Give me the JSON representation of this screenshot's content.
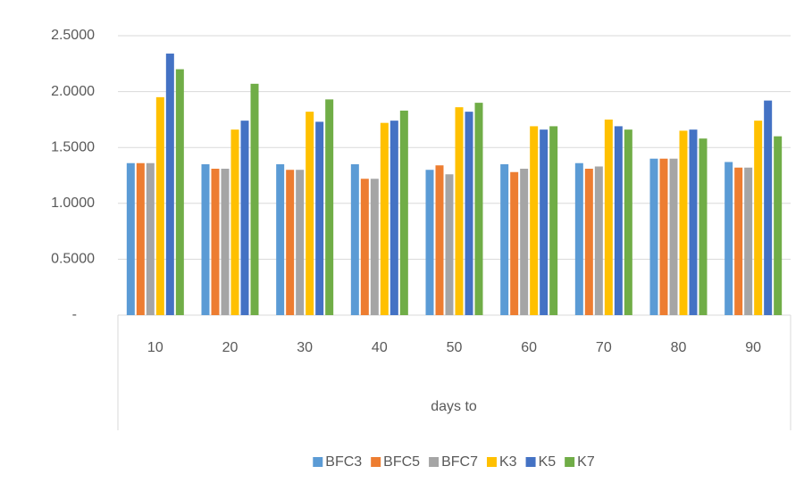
{
  "chart_data": {
    "type": "bar",
    "categories": [
      "10",
      "20",
      "30",
      "40",
      "50",
      "60",
      "70",
      "80",
      "90"
    ],
    "x_label": "days to",
    "series": [
      {
        "name": "BFC3",
        "color": "#5b9bd5",
        "values": [
          1.36,
          1.35,
          1.35,
          1.35,
          1.3,
          1.35,
          1.36,
          1.4,
          1.37
        ]
      },
      {
        "name": "BFC5",
        "color": "#ed7d31",
        "values": [
          1.36,
          1.31,
          1.3,
          1.22,
          1.34,
          1.28,
          1.31,
          1.4,
          1.32
        ]
      },
      {
        "name": "BFC7",
        "color": "#a5a5a5",
        "values": [
          1.36,
          1.31,
          1.3,
          1.22,
          1.26,
          1.31,
          1.33,
          1.4,
          1.32
        ]
      },
      {
        "name": "K3",
        "color": "#ffc000",
        "values": [
          1.95,
          1.66,
          1.82,
          1.72,
          1.86,
          1.69,
          1.75,
          1.65,
          1.74
        ]
      },
      {
        "name": "K5",
        "color": "#4472c4",
        "values": [
          2.34,
          1.74,
          1.73,
          1.74,
          1.82,
          1.66,
          1.69,
          1.66,
          1.92
        ]
      },
      {
        "name": "K7",
        "color": "#70ad47",
        "values": [
          2.2,
          2.07,
          1.93,
          1.83,
          1.9,
          1.69,
          1.66,
          1.58,
          1.6
        ]
      }
    ],
    "ylim": [
      0,
      2.5
    ],
    "yticks": [
      {
        "value": 0,
        "label": "-"
      },
      {
        "value": 0.5,
        "label": "0.5000"
      },
      {
        "value": 1,
        "label": "1.0000"
      },
      {
        "value": 1.5,
        "label": "1.5000"
      },
      {
        "value": 2,
        "label": "2.0000"
      },
      {
        "value": 2.5,
        "label": "2.5000"
      }
    ],
    "grid": true,
    "legend": "bottom"
  }
}
